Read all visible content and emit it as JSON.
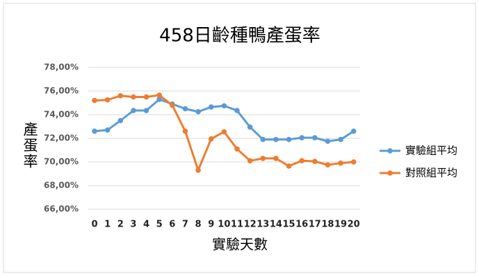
{
  "chart_data": {
    "type": "line",
    "title": "458日齡種鴨產蛋率",
    "x_label": "實驗天數",
    "y_label": "產蛋率",
    "categories": [
      "0",
      "1",
      "2",
      "3",
      "4",
      "5",
      "6",
      "7",
      "8",
      "9",
      "10",
      "11",
      "12",
      "13",
      "14",
      "15",
      "16",
      "17",
      "18",
      "19",
      "20"
    ],
    "series": [
      {
        "name": "實驗組平均",
        "color": "#5b9bd5",
        "values": [
          72.6,
          72.7,
          73.5,
          74.35,
          74.35,
          75.3,
          74.9,
          74.5,
          74.25,
          74.65,
          74.75,
          74.35,
          72.95,
          71.9,
          71.9,
          71.9,
          72.05,
          72.05,
          71.75,
          71.9,
          72.6
        ]
      },
      {
        "name": "對照組平均",
        "color": "#ed7d31",
        "values": [
          75.2,
          75.25,
          75.6,
          75.5,
          75.5,
          75.65,
          74.8,
          72.6,
          69.3,
          71.95,
          72.55,
          71.1,
          70.1,
          70.3,
          70.3,
          69.65,
          70.1,
          70.05,
          69.75,
          69.9,
          70.0
        ]
      }
    ],
    "ylim": [
      66,
      78
    ],
    "yticks": [
      {
        "value": 66,
        "label": "66,00%"
      },
      {
        "value": 68,
        "label": "68,00%"
      },
      {
        "value": 70,
        "label": "70,00%"
      },
      {
        "value": 72,
        "label": "72,00%"
      },
      {
        "value": 74,
        "label": "74,00%"
      },
      {
        "value": 76,
        "label": "76,00%"
      },
      {
        "value": 78,
        "label": "78,00%"
      }
    ],
    "grid": true,
    "legend": "right"
  }
}
